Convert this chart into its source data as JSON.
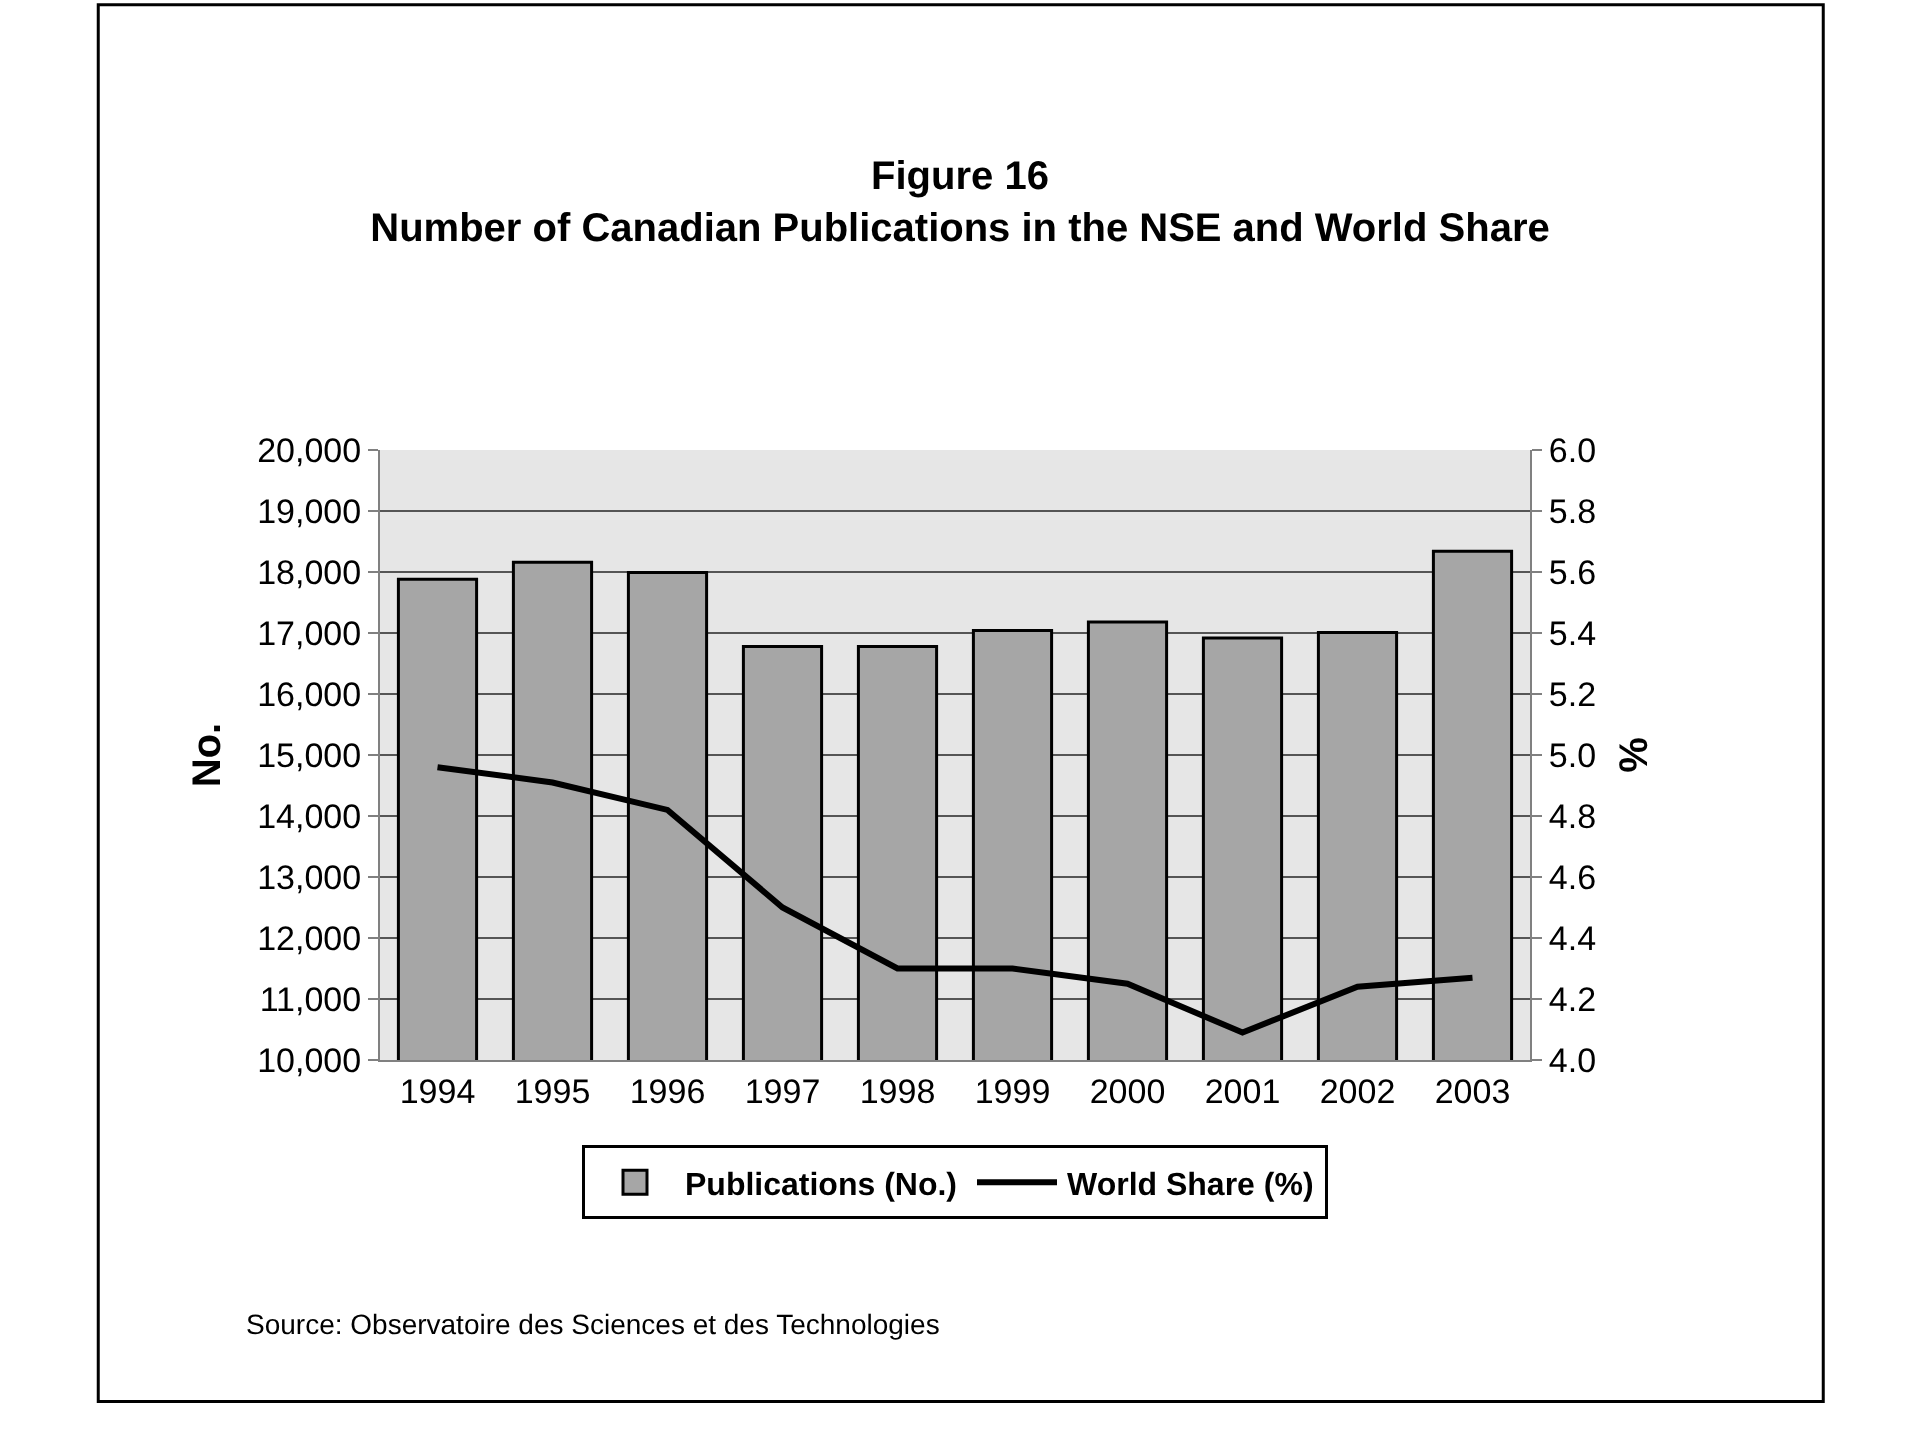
{
  "chart_data": {
    "type": "bar",
    "title": "Figure 16\nNumber of Canadian Publications in the NSE and World Share",
    "categories": [
      "1994",
      "1995",
      "1996",
      "1997",
      "1998",
      "1999",
      "2000",
      "2001",
      "2002",
      "2003"
    ],
    "series": [
      {
        "name": "Publications (No.)",
        "color": "#a6a6a6",
        "values": [
          17880,
          18160,
          17990,
          16780,
          16780,
          17040,
          17180,
          16920,
          17010,
          18340
        ]
      },
      {
        "name": "World Share (%)",
        "type": "line",
        "axis": "y2",
        "color": "#000000",
        "values": [
          4.96,
          4.91,
          4.82,
          4.5,
          4.3,
          4.3,
          4.25,
          4.09,
          4.24,
          4.27
        ]
      }
    ],
    "ylabel": "No.",
    "y2label": "%",
    "ylim": [
      10000,
      20000
    ],
    "yticks": [
      {
        "value": 10000,
        "label": "10,000"
      },
      {
        "value": 11000,
        "label": "11,000"
      },
      {
        "value": 12000,
        "label": "12,000"
      },
      {
        "value": 13000,
        "label": "13,000"
      },
      {
        "value": 14000,
        "label": "14,000"
      },
      {
        "value": 15000,
        "label": "15,000"
      },
      {
        "value": 16000,
        "label": "16,000"
      },
      {
        "value": 17000,
        "label": "17,000"
      },
      {
        "value": 18000,
        "label": "18,000"
      },
      {
        "value": 19000,
        "label": "19,000"
      },
      {
        "value": 20000,
        "label": "20,000"
      }
    ],
    "y2lim": [
      4.0,
      6.0
    ],
    "y2ticks": [
      {
        "value": 4.0,
        "label": "4.0"
      },
      {
        "value": 4.2,
        "label": "4.2"
      },
      {
        "value": 4.4,
        "label": "4.4"
      },
      {
        "value": 4.6,
        "label": "4.6"
      },
      {
        "value": 4.8,
        "label": "4.8"
      },
      {
        "value": 5.0,
        "label": "5.0"
      },
      {
        "value": 5.2,
        "label": "5.2"
      },
      {
        "value": 5.4,
        "label": "5.4"
      },
      {
        "value": 5.6,
        "label": "5.6"
      },
      {
        "value": 5.8,
        "label": "5.8"
      },
      {
        "value": 6.0,
        "label": "6.0"
      }
    ],
    "grid": "y",
    "legend": "bottom",
    "marker": "none",
    "line_style": "solid",
    "annotations": [
      "Source: Observatoire des Sciences et des Technologies"
    ]
  }
}
